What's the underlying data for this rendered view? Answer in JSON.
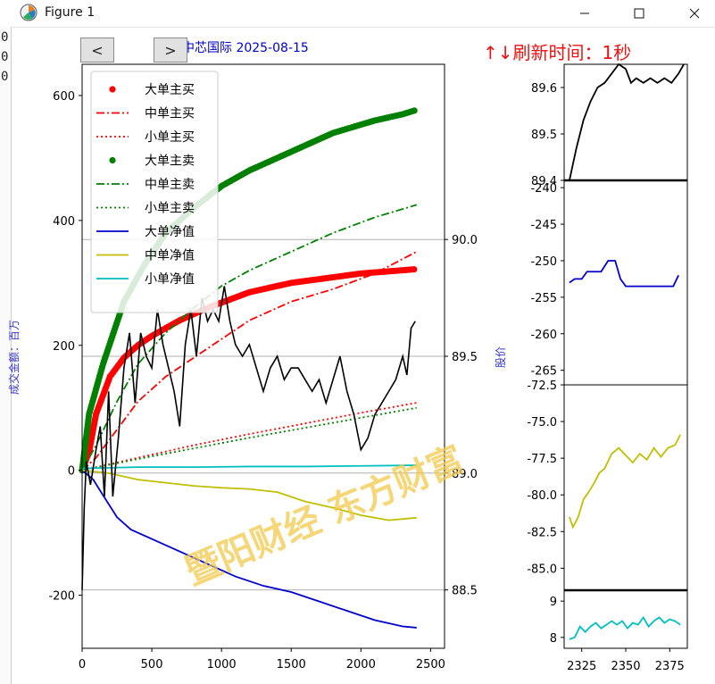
{
  "window": {
    "title": "Figure 1",
    "buttons": {
      "minimize": "—",
      "maximize": "☐",
      "close": "✕"
    }
  },
  "background_chars": [
    "0",
    "0",
    "0"
  ],
  "nav": {
    "prev_label": "<",
    "next_label": ">"
  },
  "header": {
    "title": "中芯国际  2025-08-15",
    "refresh_text": "↑↓刷新时间：1秒"
  },
  "watermark": "暨阳财经  东方财富",
  "colors": {
    "red": "#ff0000",
    "green": "#008000",
    "blue": "#0000cd",
    "olive": "#bfbf00",
    "cyan": "#00bfbf",
    "black": "#000000",
    "watermark": "#f2c94c",
    "label_blue": "#3333cc"
  },
  "chart_data": [
    {
      "type": "line",
      "ylabel": "成交金额：百万",
      "y2label": "股价",
      "xlim": [
        0,
        2600
      ],
      "ylim": [
        -285,
        650
      ],
      "y2lim": [
        88.25,
        90.75
      ],
      "xticks": [
        0,
        500,
        1000,
        1500,
        2000,
        2500
      ],
      "yticks": [
        -200,
        0,
        200,
        400,
        600
      ],
      "y2ticks": [
        88.5,
        89.0,
        89.5,
        90.0
      ],
      "y2ticklabels": [
        "88.5",
        "89.0",
        "89.5",
        "90.0"
      ],
      "grid_y2": true,
      "legend_position": "top-left",
      "series": [
        {
          "name": "大单主买",
          "color": "#ff0000",
          "style": "dots",
          "axis": "left",
          "x": [
            0,
            50,
            100,
            200,
            300,
            400,
            500,
            700,
            900,
            1200,
            1500,
            2000,
            2400
          ],
          "values": [
            0,
            30,
            90,
            150,
            180,
            200,
            215,
            240,
            260,
            285,
            300,
            315,
            322
          ]
        },
        {
          "name": "中单主买",
          "color": "#ff0000",
          "style": "dashdot",
          "axis": "left",
          "x": [
            0,
            100,
            200,
            400,
            600,
            800,
            1000,
            1200,
            1500,
            1800,
            2100,
            2400
          ],
          "values": [
            0,
            20,
            50,
            110,
            150,
            180,
            210,
            240,
            270,
            290,
            315,
            350
          ]
        },
        {
          "name": "小单主买",
          "color": "#ff0000",
          "style": "dotted",
          "axis": "left",
          "x": [
            0,
            400,
            800,
            1200,
            1600,
            2000,
            2400
          ],
          "values": [
            0,
            20,
            40,
            58,
            75,
            92,
            108
          ]
        },
        {
          "name": "大单主卖",
          "color": "#008000",
          "style": "dots",
          "axis": "left",
          "x": [
            0,
            50,
            150,
            300,
            450,
            600,
            800,
            1000,
            1200,
            1500,
            1800,
            2100,
            2300,
            2400
          ],
          "values": [
            0,
            90,
            170,
            270,
            330,
            380,
            420,
            455,
            480,
            510,
            540,
            560,
            570,
            577
          ]
        },
        {
          "name": "中单主卖",
          "color": "#008000",
          "style": "dashdot",
          "axis": "left",
          "x": [
            0,
            100,
            250,
            400,
            600,
            800,
            1000,
            1200,
            1500,
            1800,
            2100,
            2400
          ],
          "values": [
            0,
            40,
            110,
            170,
            220,
            260,
            295,
            320,
            350,
            380,
            405,
            425
          ]
        },
        {
          "name": "小单主卖",
          "color": "#008000",
          "style": "dotted",
          "axis": "left",
          "x": [
            0,
            400,
            800,
            1200,
            1600,
            2000,
            2400
          ],
          "values": [
            0,
            18,
            35,
            52,
            68,
            84,
            100
          ]
        },
        {
          "name": "大单净值",
          "color": "#0000cd",
          "style": "solid",
          "axis": "left",
          "x": [
            0,
            80,
            150,
            250,
            350,
            500,
            700,
            900,
            1100,
            1300,
            1500,
            1700,
            1900,
            2100,
            2300,
            2400
          ],
          "values": [
            0,
            -15,
            -40,
            -75,
            -95,
            -110,
            -130,
            -150,
            -170,
            -185,
            -195,
            -210,
            -225,
            -240,
            -250,
            -252
          ]
        },
        {
          "name": "中单净值",
          "color": "#bfbf00",
          "style": "solid",
          "axis": "left",
          "x": [
            0,
            200,
            400,
            600,
            800,
            1000,
            1200,
            1400,
            1600,
            1800,
            2000,
            2200,
            2400
          ],
          "values": [
            0,
            -5,
            -15,
            -20,
            -25,
            -28,
            -30,
            -35,
            -50,
            -60,
            -72,
            -80,
            -76
          ]
        },
        {
          "name": "小单净值",
          "color": "#00bfbf",
          "style": "solid",
          "axis": "left",
          "x": [
            0,
            400,
            800,
            1200,
            1600,
            2000,
            2400
          ],
          "values": [
            3,
            5,
            5,
            6,
            6,
            7,
            8
          ]
        },
        {
          "name": "股价",
          "color": "#000000",
          "style": "solid",
          "axis": "right",
          "show_in_legend": false,
          "x": [
            0,
            15,
            30,
            60,
            100,
            130,
            160,
            190,
            220,
            260,
            300,
            340,
            380,
            420,
            460,
            500,
            540,
            580,
            620,
            660,
            700,
            740,
            780,
            820,
            860,
            900,
            940,
            980,
            1020,
            1060,
            1100,
            1150,
            1200,
            1250,
            1300,
            1350,
            1400,
            1450,
            1500,
            1550,
            1600,
            1650,
            1700,
            1750,
            1800,
            1850,
            1900,
            1950,
            2000,
            2050,
            2100,
            2150,
            2200,
            2250,
            2300,
            2330,
            2360,
            2390
          ],
          "values": [
            88.5,
            88.85,
            89.05,
            88.95,
            89.1,
            89.2,
            88.9,
            89.35,
            88.9,
            89.15,
            89.45,
            89.6,
            89.3,
            89.6,
            89.5,
            89.45,
            89.7,
            89.55,
            89.45,
            89.35,
            89.2,
            89.55,
            89.7,
            89.5,
            89.75,
            89.65,
            89.7,
            89.65,
            89.8,
            89.65,
            89.55,
            89.5,
            89.55,
            89.45,
            89.35,
            89.45,
            89.5,
            89.4,
            89.45,
            89.45,
            89.4,
            89.35,
            89.4,
            89.3,
            89.4,
            89.5,
            89.35,
            89.25,
            89.1,
            89.15,
            89.25,
            89.3,
            89.35,
            89.4,
            89.5,
            89.42,
            89.62,
            89.65
          ]
        }
      ]
    },
    {
      "type": "line",
      "position": "right panel 1",
      "ylim": [
        89.4,
        89.65
      ],
      "yticks": [
        89.4,
        89.5,
        89.6
      ],
      "yticklabels": [
        "89.4",
        "89.5",
        "89.6"
      ],
      "series": [
        {
          "color": "#000000",
          "x": [
            2318,
            2322,
            2326,
            2330,
            2334,
            2338,
            2342,
            2346,
            2350,
            2353,
            2356,
            2360,
            2364,
            2368,
            2372,
            2376,
            2380,
            2383
          ],
          "values": [
            89.4,
            89.47,
            89.53,
            89.57,
            89.6,
            89.61,
            89.63,
            89.65,
            89.64,
            89.61,
            89.62,
            89.61,
            89.62,
            89.61,
            89.62,
            89.61,
            89.63,
            89.65
          ]
        }
      ]
    },
    {
      "type": "line",
      "position": "right panel 2",
      "ylim": [
        -267,
        -239
      ],
      "yticks": [
        -265,
        -260,
        -255,
        -250,
        -245,
        -240
      ],
      "yticklabels": [
        "-265",
        "-260",
        "-255",
        "-250",
        "-245",
        "-240"
      ],
      "series": [
        {
          "color": "#0000cd",
          "x": [
            2318,
            2321,
            2325,
            2328,
            2332,
            2336,
            2340,
            2344,
            2347,
            2350,
            2355,
            2360,
            2365,
            2370,
            2374,
            2377,
            2380
          ],
          "values": [
            -253,
            -252.5,
            -252.5,
            -251.5,
            -251.5,
            -251.5,
            -250,
            -250,
            -252.5,
            -253.5,
            -253.5,
            -253.5,
            -253.5,
            -253.5,
            -253.5,
            -253.5,
            -252
          ]
        }
      ]
    },
    {
      "type": "line",
      "position": "right panel 3",
      "ylim": [
        -86.5,
        -72.5
      ],
      "yticks": [
        -85.0,
        -82.5,
        -80.0,
        -77.5,
        -75.0,
        -72.5
      ],
      "yticklabels": [
        "-85.0",
        "-82.5",
        "-80.0",
        "-77.5",
        "-75.0",
        "-72.5"
      ],
      "series": [
        {
          "color": "#bfbf00",
          "x": [
            2318,
            2320,
            2323,
            2326,
            2329,
            2332,
            2335,
            2338,
            2342,
            2346,
            2350,
            2354,
            2358,
            2362,
            2366,
            2370,
            2374,
            2378,
            2381
          ],
          "values": [
            -81.5,
            -82.2,
            -81.5,
            -80.3,
            -79.8,
            -79.2,
            -78.5,
            -78.2,
            -77.2,
            -76.8,
            -77.3,
            -77.8,
            -77.2,
            -77.6,
            -76.8,
            -77.4,
            -76.8,
            -76.6,
            -75.9
          ]
        }
      ]
    },
    {
      "type": "line",
      "position": "right panel 4",
      "ylim": [
        7.7,
        9.3
      ],
      "yticks": [
        8,
        9
      ],
      "yticklabels": [
        "8",
        "9"
      ],
      "xticks": [
        2325,
        2350,
        2375
      ],
      "xticklabels": [
        "2325",
        "2350",
        "2375"
      ],
      "series": [
        {
          "color": "#00bfbf",
          "x": [
            2318,
            2321,
            2324,
            2327,
            2330,
            2333,
            2336,
            2339,
            2342,
            2345,
            2348,
            2351,
            2354,
            2357,
            2360,
            2363,
            2366,
            2369,
            2372,
            2375,
            2378,
            2381
          ],
          "values": [
            7.95,
            8.0,
            8.3,
            8.15,
            8.3,
            8.4,
            8.25,
            8.35,
            8.45,
            8.35,
            8.45,
            8.25,
            8.4,
            8.35,
            8.55,
            8.3,
            8.45,
            8.55,
            8.4,
            8.5,
            8.45,
            8.35
          ]
        }
      ]
    }
  ]
}
